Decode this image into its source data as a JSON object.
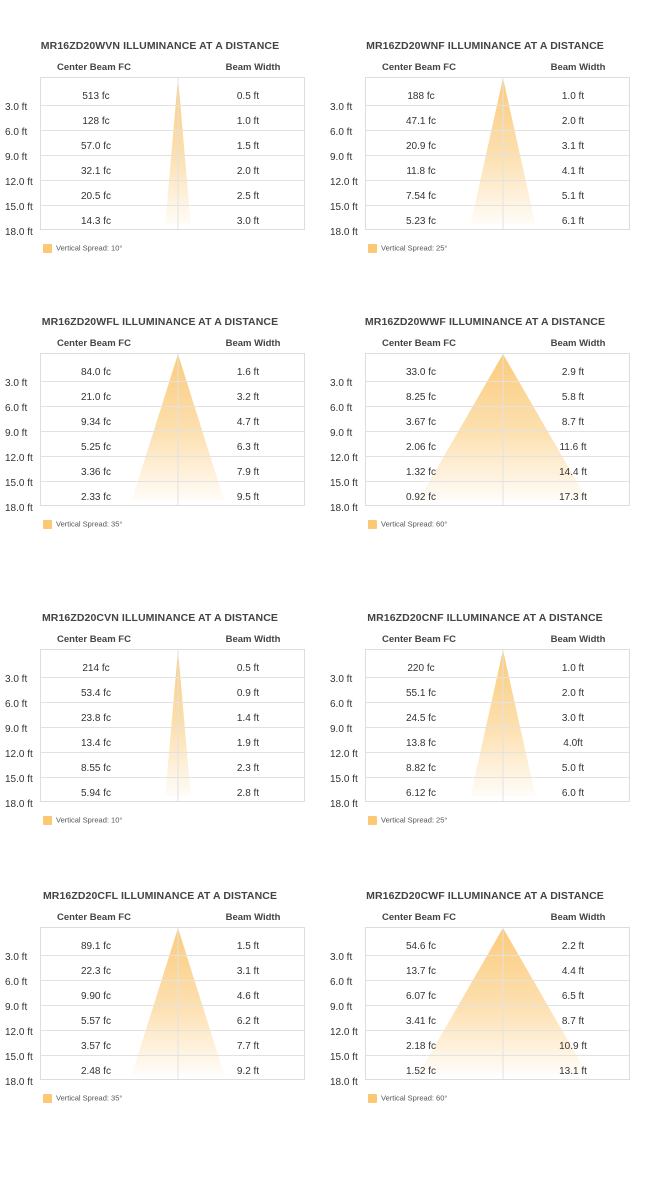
{
  "chart_data": [
    {
      "type": "table",
      "title": "MR16ZD20WVN ILLUMINANCE AT A DISTANCE",
      "columns": [
        "Center Beam FC",
        "Beam Width"
      ],
      "distances": [
        "3.0 ft",
        "6.0 ft",
        "9.0 ft",
        "12.0 ft",
        "15.0 ft",
        "18.0 ft"
      ],
      "center_beam_fc": [
        "513 fc",
        "128 fc",
        "57.0 fc",
        "32.1 fc",
        "20.5 fc",
        "14.3 fc"
      ],
      "beam_width": [
        "0.5 ft",
        "1.0 ft",
        "1.5 ft",
        "2.0 ft",
        "2.5 ft",
        "3.0 ft"
      ],
      "legend": "Vertical Spread: 10°",
      "spread_deg": 10,
      "color": "#fbc874"
    },
    {
      "type": "table",
      "title": "MR16ZD20WNF ILLUMINANCE AT A DISTANCE",
      "columns": [
        "Center Beam FC",
        "Beam Width"
      ],
      "distances": [
        "3.0 ft",
        "6.0 ft",
        "9.0 ft",
        "12.0 ft",
        "15.0 ft",
        "18.0 ft"
      ],
      "center_beam_fc": [
        "188 fc",
        "47.1 fc",
        "20.9 fc",
        "11.8 fc",
        "7.54 fc",
        "5.23 fc"
      ],
      "beam_width": [
        "1.0 ft",
        "2.0 ft",
        "3.1 ft",
        "4.1 ft",
        "5.1 ft",
        "6.1 ft"
      ],
      "legend": "Vertical Spread: 25°",
      "spread_deg": 25,
      "color": "#fbc874"
    },
    {
      "type": "table",
      "title": "MR16ZD20WFL ILLUMINANCE AT A DISTANCE",
      "columns": [
        "Center Beam FC",
        "Beam Width"
      ],
      "distances": [
        "3.0 ft",
        "6.0 ft",
        "9.0 ft",
        "12.0 ft",
        "15.0 ft",
        "18.0 ft"
      ],
      "center_beam_fc": [
        "84.0 fc",
        "21.0 fc",
        "9.34 fc",
        "5.25 fc",
        "3.36 fc",
        "2.33 fc"
      ],
      "beam_width": [
        "1.6 ft",
        "3.2 ft",
        "4.7 ft",
        "6.3 ft",
        "7.9 ft",
        "9.5 ft"
      ],
      "legend": "Vertical Spread: 35°",
      "spread_deg": 35,
      "color": "#fbc874"
    },
    {
      "type": "table",
      "title": "MR16ZD20WWF ILLUMINANCE AT A DISTANCE",
      "columns": [
        "Center Beam FC",
        "Beam Width"
      ],
      "distances": [
        "3.0 ft",
        "6.0 ft",
        "9.0 ft",
        "12.0 ft",
        "15.0 ft",
        "18.0 ft"
      ],
      "center_beam_fc": [
        "33.0 fc",
        "8.25 fc",
        "3.67 fc",
        "2.06 fc",
        "1.32 fc",
        "0.92 fc"
      ],
      "beam_width": [
        "2.9 ft",
        "5.8 ft",
        "8.7 ft",
        "11.6 ft",
        "14.4 ft",
        "17.3 ft"
      ],
      "legend": "Vertical Spread: 60°",
      "spread_deg": 60,
      "color": "#fbc874"
    },
    {
      "type": "table",
      "title": "MR16ZD20CVN ILLUMINANCE AT A DISTANCE",
      "columns": [
        "Center Beam FC",
        "Beam Width"
      ],
      "distances": [
        "3.0 ft",
        "6.0 ft",
        "9.0 ft",
        "12.0 ft",
        "15.0 ft",
        "18.0 ft"
      ],
      "center_beam_fc": [
        "214 fc",
        "53.4 fc",
        "23.8 fc",
        "13.4 fc",
        "8.55 fc",
        "5.94 fc"
      ],
      "beam_width": [
        "0.5 ft",
        "0.9 ft",
        "1.4 ft",
        "1.9 ft",
        "2.3 ft",
        "2.8 ft"
      ],
      "legend": "Vertical Spread: 10°",
      "spread_deg": 10,
      "color": "#fbc874"
    },
    {
      "type": "table",
      "title": "MR16ZD20CNF ILLUMINANCE AT A DISTANCE",
      "columns": [
        "Center Beam FC",
        "Beam Width"
      ],
      "distances": [
        "3.0 ft",
        "6.0 ft",
        "9.0 ft",
        "12.0 ft",
        "15.0 ft",
        "18.0 ft"
      ],
      "center_beam_fc": [
        "220 fc",
        "55.1 fc",
        "24.5 fc",
        "13.8 fc",
        "8.82 fc",
        "6.12 fc"
      ],
      "beam_width": [
        "1.0 ft",
        "2.0 ft",
        "3.0 ft",
        "4.0ft",
        "5.0 ft",
        "6.0 ft"
      ],
      "legend": "Vertical Spread: 25°",
      "spread_deg": 25,
      "color": "#fbc874"
    },
    {
      "type": "table",
      "title": "MR16ZD20CFL ILLUMINANCE AT A DISTANCE",
      "columns": [
        "Center Beam FC",
        "Beam Width"
      ],
      "distances": [
        "3.0 ft",
        "6.0 ft",
        "9.0 ft",
        "12.0 ft",
        "15.0 ft",
        "18.0 ft"
      ],
      "center_beam_fc": [
        "89.1 fc",
        "22.3 fc",
        "9.90 fc",
        "5.57 fc",
        "3.57 fc",
        "2.48 fc"
      ],
      "beam_width": [
        "1.5 ft",
        "3.1 ft",
        "4.6 ft",
        "6.2 ft",
        "7.7 ft",
        "9.2 ft"
      ],
      "legend": "Vertical Spread: 35°",
      "spread_deg": 35,
      "color": "#fbc874"
    },
    {
      "type": "table",
      "title": "MR16ZD20CWF ILLUMINANCE AT A DISTANCE",
      "columns": [
        "Center Beam FC",
        "Beam Width"
      ],
      "distances": [
        "3.0 ft",
        "6.0 ft",
        "9.0 ft",
        "12.0 ft",
        "15.0 ft",
        "18.0 ft"
      ],
      "center_beam_fc": [
        "54.6 fc",
        "13.7 fc",
        "6.07 fc",
        "3.41 fc",
        "2.18 fc",
        "1.52 fc"
      ],
      "beam_width": [
        "2.2 ft",
        "4.4 ft",
        "6.5 ft",
        "8.7 ft",
        "10.9 ft",
        "13.1 ft"
      ],
      "legend": "Vertical Spread: 60°",
      "spread_deg": 60,
      "color": "#fbc874"
    }
  ]
}
